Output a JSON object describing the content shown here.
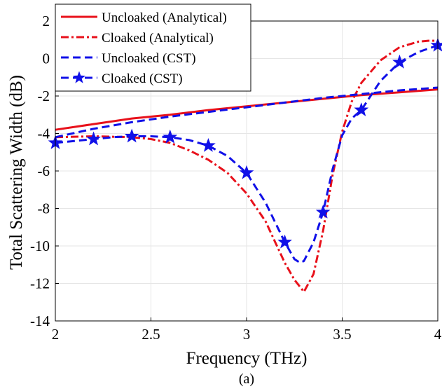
{
  "chart_data": {
    "type": "line",
    "xlabel": "Frequency (THz)",
    "ylabel": "Total Scattering Width (dB)",
    "caption": "(a)",
    "xlim": [
      2,
      4
    ],
    "ylim": [
      -14,
      2
    ],
    "xticks": [
      2,
      2.5,
      3,
      3.5,
      4
    ],
    "xtick_labels": [
      "2",
      "2.5",
      "3",
      "3.5",
      "4"
    ],
    "yticks": [
      -14,
      -12,
      -10,
      -8,
      -6,
      -4,
      -2,
      0,
      2
    ],
    "ytick_labels": [
      "-14",
      "-12",
      "-10",
      "-8",
      "-6",
      "-4",
      "-2",
      "0",
      "2"
    ],
    "grid": true,
    "legend_position": "top-left",
    "series": [
      {
        "name": "Uncloaked (Analytical)",
        "color": "#e8111b",
        "line_style": "solid",
        "marker": "none",
        "x": [
          2.0,
          2.2,
          2.4,
          2.6,
          2.8,
          3.0,
          3.2,
          3.4,
          3.6,
          3.8,
          4.0
        ],
        "y": [
          -3.8,
          -3.5,
          -3.2,
          -3.0,
          -2.75,
          -2.55,
          -2.35,
          -2.15,
          -1.95,
          -1.8,
          -1.65
        ]
      },
      {
        "name": "Cloaked (Analytical)",
        "color": "#e8111b",
        "line_style": "dashdot",
        "marker": "none",
        "x": [
          2.0,
          2.2,
          2.4,
          2.5,
          2.6,
          2.7,
          2.8,
          2.9,
          3.0,
          3.1,
          3.15,
          3.2,
          3.25,
          3.3,
          3.35,
          3.4,
          3.45,
          3.5,
          3.55,
          3.6,
          3.7,
          3.8,
          3.9,
          3.95,
          4.0
        ],
        "y": [
          -4.2,
          -4.15,
          -4.2,
          -4.3,
          -4.5,
          -4.9,
          -5.4,
          -6.1,
          -7.2,
          -8.7,
          -9.8,
          -10.9,
          -11.8,
          -12.45,
          -11.5,
          -9.2,
          -6.2,
          -3.9,
          -2.3,
          -1.3,
          -0.1,
          0.6,
          0.9,
          0.95,
          0.95
        ]
      },
      {
        "name": "Uncloaked (CST)",
        "color": "#1010e8",
        "line_style": "dashed",
        "marker": "none",
        "x": [
          2.0,
          2.2,
          2.4,
          2.6,
          2.8,
          3.0,
          3.2,
          3.4,
          3.6,
          3.8,
          4.0
        ],
        "y": [
          -4.2,
          -3.75,
          -3.4,
          -3.1,
          -2.85,
          -2.6,
          -2.35,
          -2.1,
          -1.9,
          -1.7,
          -1.55
        ]
      },
      {
        "name": "Cloaked (CST)",
        "color": "#1010e8",
        "line_style": "dashed",
        "marker": "star",
        "x": [
          2.0,
          2.1,
          2.2,
          2.3,
          2.4,
          2.5,
          2.6,
          2.7,
          2.8,
          2.9,
          3.0,
          3.1,
          3.2,
          3.25,
          3.28,
          3.3,
          3.35,
          3.4,
          3.45,
          3.5,
          3.55,
          3.6,
          3.7,
          3.8,
          3.9,
          4.0
        ],
        "y": [
          -4.5,
          -4.4,
          -4.3,
          -4.2,
          -4.15,
          -4.15,
          -4.2,
          -4.35,
          -4.65,
          -5.2,
          -6.1,
          -7.7,
          -9.8,
          -10.7,
          -10.9,
          -10.8,
          -9.8,
          -8.2,
          -5.9,
          -4.1,
          -3.2,
          -2.75,
          -1.2,
          -0.2,
          0.35,
          0.7
        ],
        "marker_x": [
          2.0,
          2.2,
          2.4,
          2.6,
          2.8,
          3.0,
          3.2,
          3.4,
          3.6,
          3.8,
          4.0
        ],
        "marker_y": [
          -4.5,
          -4.3,
          -4.15,
          -4.2,
          -4.65,
          -6.1,
          -9.8,
          -8.2,
          -2.75,
          -0.2,
          0.7
        ]
      }
    ]
  }
}
